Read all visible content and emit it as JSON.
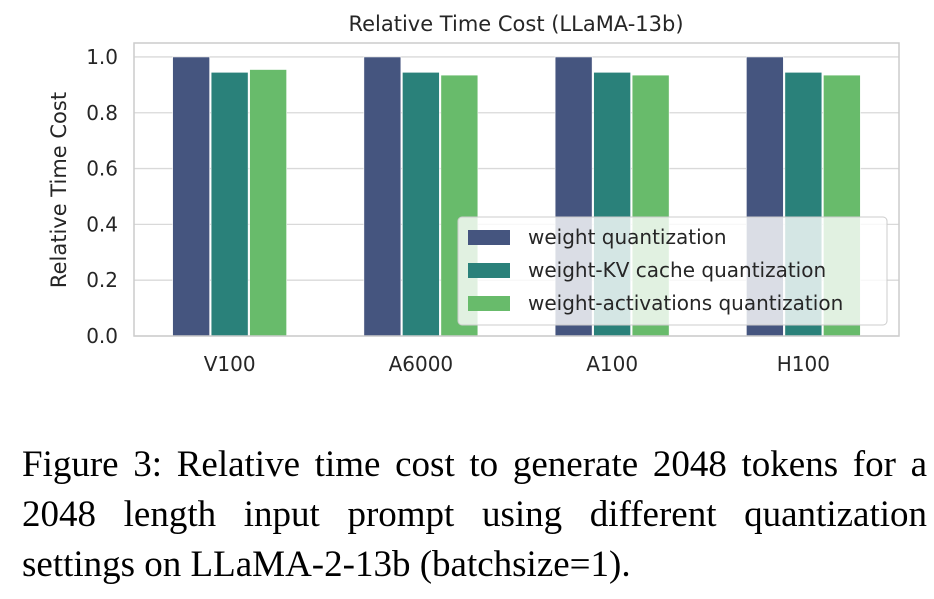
{
  "figure": {
    "caption": "Figure 3: Relative time cost to generate 2048 tokens for a 2048 length input prompt using different quantization settings on LLaMA-2-13b (batchsize=1)."
  },
  "chart_data": {
    "type": "bar",
    "title": "Relative Time Cost (LLaMA-13b)",
    "xlabel": "",
    "ylabel": "Relative Time Cost",
    "categories": [
      "V100",
      "A6000",
      "A100",
      "H100"
    ],
    "series": [
      {
        "name": "weight quantization",
        "color": "#45557f",
        "values": [
          1.0,
          1.0,
          1.0,
          1.0
        ]
      },
      {
        "name": "weight-KV cache quantization",
        "color": "#2a817a",
        "values": [
          0.945,
          0.945,
          0.945,
          0.945
        ]
      },
      {
        "name": "weight-activations quantization",
        "color": "#68bb6b",
        "values": [
          0.955,
          0.935,
          0.935,
          0.935
        ]
      }
    ],
    "ylim": [
      0,
      1.05
    ],
    "yticks": [
      0.0,
      0.2,
      0.4,
      0.6,
      0.8,
      1.0
    ],
    "ytick_labels": [
      "0.0",
      "0.2",
      "0.4",
      "0.6",
      "0.8",
      "1.0"
    ],
    "grid": true,
    "legend_position": "lower-right"
  }
}
